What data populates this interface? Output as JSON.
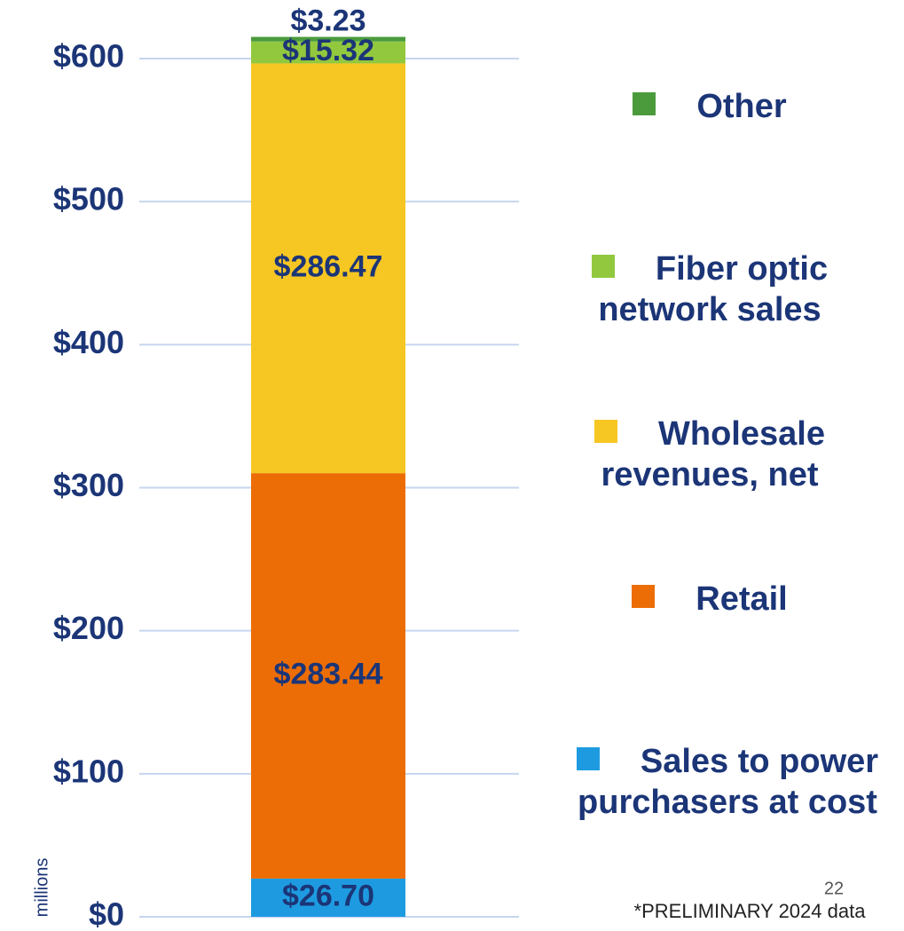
{
  "chart_data": {
    "type": "stacked_bar",
    "y_label": "millions",
    "series": [
      {
        "name": "Sales to power purchasers at cost",
        "color": "#1e9be0",
        "values": [
          26.7
        ],
        "value_labels": [
          "$26.70"
        ]
      },
      {
        "name": "Retail",
        "color": "#ec6d06",
        "values": [
          283.44
        ],
        "value_labels": [
          "$283.44"
        ]
      },
      {
        "name": "Wholesale revenues, net",
        "color": "#f6c623",
        "values": [
          286.47
        ],
        "value_labels": [
          "$286.47"
        ]
      },
      {
        "name": "Fiber optic network sales",
        "color": "#92c83e",
        "values": [
          15.32
        ],
        "value_labels": [
          "$15.32"
        ]
      },
      {
        "name": "Other",
        "color": "#4b9b3d",
        "values": [
          3.23
        ],
        "value_labels": [
          "$3.23"
        ]
      }
    ],
    "ylim": [
      0,
      620
    ],
    "yticks": [
      {
        "value": 0,
        "label": "$0"
      },
      {
        "value": 100,
        "label": "$100"
      },
      {
        "value": 200,
        "label": "$200"
      },
      {
        "value": 300,
        "label": "$300"
      },
      {
        "value": 400,
        "label": "$400"
      },
      {
        "value": 500,
        "label": "$500"
      },
      {
        "value": 600,
        "label": "$600"
      }
    ],
    "grid": true,
    "page_number": "22",
    "footnote": "*PRELIMINARY 2024 data"
  }
}
